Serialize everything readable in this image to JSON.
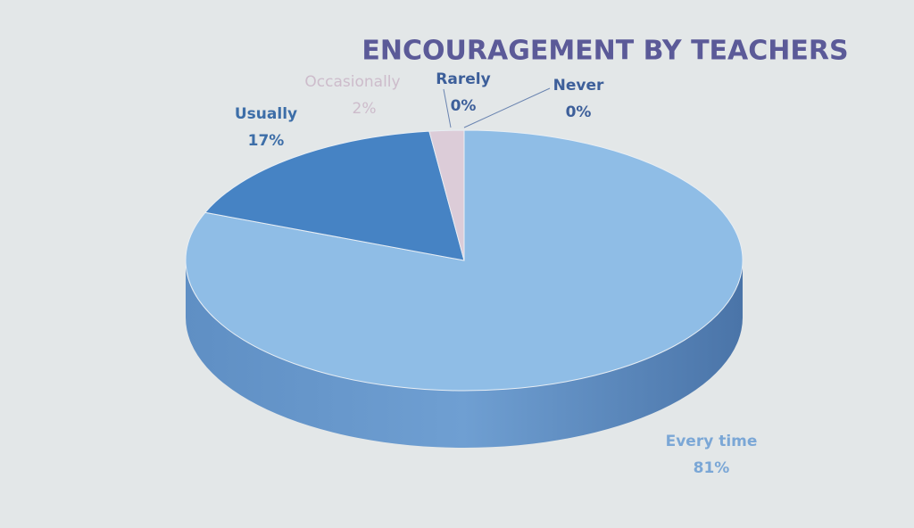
{
  "chart_data": {
    "type": "pie",
    "title": "ENCOURAGEMENT BY TEACHERS",
    "categories": [
      "Every time",
      "Usually",
      "Occasionally",
      "Rarely",
      "Never"
    ],
    "values": [
      81,
      17,
      2,
      0,
      0
    ],
    "value_labels": [
      "81%",
      "17%",
      "2%",
      "0%",
      "0%"
    ],
    "colors": [
      "#8fbde6",
      "#4683c4",
      "#dcccd8",
      "#c9d4e4",
      "#b8c8de"
    ]
  }
}
